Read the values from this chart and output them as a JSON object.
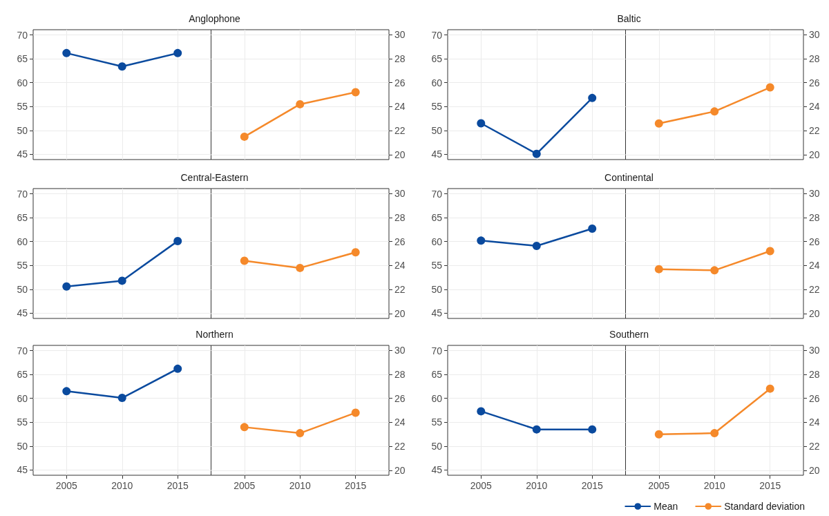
{
  "chart_data": [
    {
      "type": "line",
      "title": "Anglophone",
      "categories": [
        "2005",
        "2010",
        "2015",
        "2005",
        "2010",
        "2015"
      ],
      "series": [
        {
          "color": "#0a4a9e",
          "values": [
            66.2,
            63.4,
            66.2,
            null,
            null,
            null
          ]
        },
        {
          "color": "#f5892a",
          "axis": "y2",
          "values": [
            null,
            null,
            null,
            21.5,
            24.2,
            25.2
          ]
        }
      ],
      "ylim": [
        43.9,
        71.1
      ],
      "yticks": [
        45,
        50,
        55,
        60,
        65,
        70
      ],
      "y2lim": [
        19.6,
        30.4
      ],
      "y2ticks": [
        20,
        22,
        24,
        26,
        28,
        30
      ],
      "grid": true,
      "marker": "circle",
      "line_style": "solid",
      "tick_labels": "y"
    },
    {
      "type": "line",
      "title": "Baltic",
      "categories": [
        "2005",
        "2010",
        "2015",
        "2005",
        "2010",
        "2015"
      ],
      "series": [
        {
          "color": "#0a4a9e",
          "values": [
            51.5,
            45.1,
            56.8,
            null,
            null,
            null
          ]
        },
        {
          "color": "#f5892a",
          "axis": "y2",
          "values": [
            null,
            null,
            null,
            22.6,
            23.6,
            25.6
          ]
        }
      ],
      "ylim": [
        43.9,
        71.1
      ],
      "yticks": [
        45,
        50,
        55,
        60,
        65,
        70
      ],
      "y2lim": [
        19.6,
        30.4
      ],
      "y2ticks": [
        20,
        22,
        24,
        26,
        28,
        30
      ],
      "grid": true,
      "marker": "circle",
      "line_style": "solid",
      "tick_labels": "y"
    },
    {
      "type": "line",
      "title": "Central-Eastern",
      "categories": [
        "2005",
        "2010",
        "2015",
        "2005",
        "2010",
        "2015"
      ],
      "series": [
        {
          "color": "#0a4a9e",
          "values": [
            50.6,
            51.8,
            60.1,
            null,
            null,
            null
          ]
        },
        {
          "color": "#f5892a",
          "axis": "y2",
          "values": [
            null,
            null,
            null,
            24.4,
            23.8,
            25.1
          ]
        }
      ],
      "ylim": [
        43.9,
        71.1
      ],
      "yticks": [
        45,
        50,
        55,
        60,
        65,
        70
      ],
      "y2lim": [
        19.6,
        30.4
      ],
      "y2ticks": [
        20,
        22,
        24,
        26,
        28,
        30
      ],
      "grid": true,
      "marker": "circle",
      "line_style": "solid",
      "tick_labels": "y"
    },
    {
      "type": "line",
      "title": "Continental",
      "categories": [
        "2005",
        "2010",
        "2015",
        "2005",
        "2010",
        "2015"
      ],
      "series": [
        {
          "color": "#0a4a9e",
          "values": [
            60.2,
            59.1,
            62.7,
            null,
            null,
            null
          ]
        },
        {
          "color": "#f5892a",
          "axis": "y2",
          "values": [
            null,
            null,
            null,
            23.7,
            23.6,
            25.2
          ]
        }
      ],
      "ylim": [
        43.9,
        71.1
      ],
      "yticks": [
        45,
        50,
        55,
        60,
        65,
        70
      ],
      "y2lim": [
        19.6,
        30.4
      ],
      "y2ticks": [
        20,
        22,
        24,
        26,
        28,
        30
      ],
      "grid": true,
      "marker": "circle",
      "line_style": "solid",
      "tick_labels": "y"
    },
    {
      "type": "line",
      "title": "Northern",
      "categories": [
        "2005",
        "2010",
        "2015",
        "2005",
        "2010",
        "2015"
      ],
      "series": [
        {
          "color": "#0a4a9e",
          "values": [
            61.5,
            60.1,
            66.2,
            null,
            null,
            null
          ]
        },
        {
          "color": "#f5892a",
          "axis": "y2",
          "values": [
            null,
            null,
            null,
            23.6,
            23.1,
            24.8
          ]
        }
      ],
      "ylim": [
        43.9,
        71.1
      ],
      "yticks": [
        45,
        50,
        55,
        60,
        65,
        70
      ],
      "y2lim": [
        19.6,
        30.4
      ],
      "y2ticks": [
        20,
        22,
        24,
        26,
        28,
        30
      ],
      "grid": true,
      "marker": "circle",
      "line_style": "solid"
    },
    {
      "type": "line",
      "title": "Southern",
      "categories": [
        "2005",
        "2010",
        "2015",
        "2005",
        "2010",
        "2015"
      ],
      "series": [
        {
          "name": "Mean",
          "color": "#0a4a9e",
          "values": [
            57.3,
            53.5,
            53.5,
            null,
            null,
            null
          ]
        },
        {
          "name": "Standard deviation",
          "color": "#f5892a",
          "axis": "y2",
          "values": [
            null,
            null,
            null,
            23.0,
            23.1,
            26.8
          ]
        }
      ],
      "ylim": [
        43.9,
        71.1
      ],
      "yticks": [
        45,
        50,
        55,
        60,
        65,
        70
      ],
      "y2lim": [
        19.6,
        30.4
      ],
      "y2ticks": [
        20,
        22,
        24,
        26,
        28,
        30
      ],
      "grid": true,
      "marker": "circle",
      "line_style": "solid",
      "legend": "bottom right"
    }
  ]
}
